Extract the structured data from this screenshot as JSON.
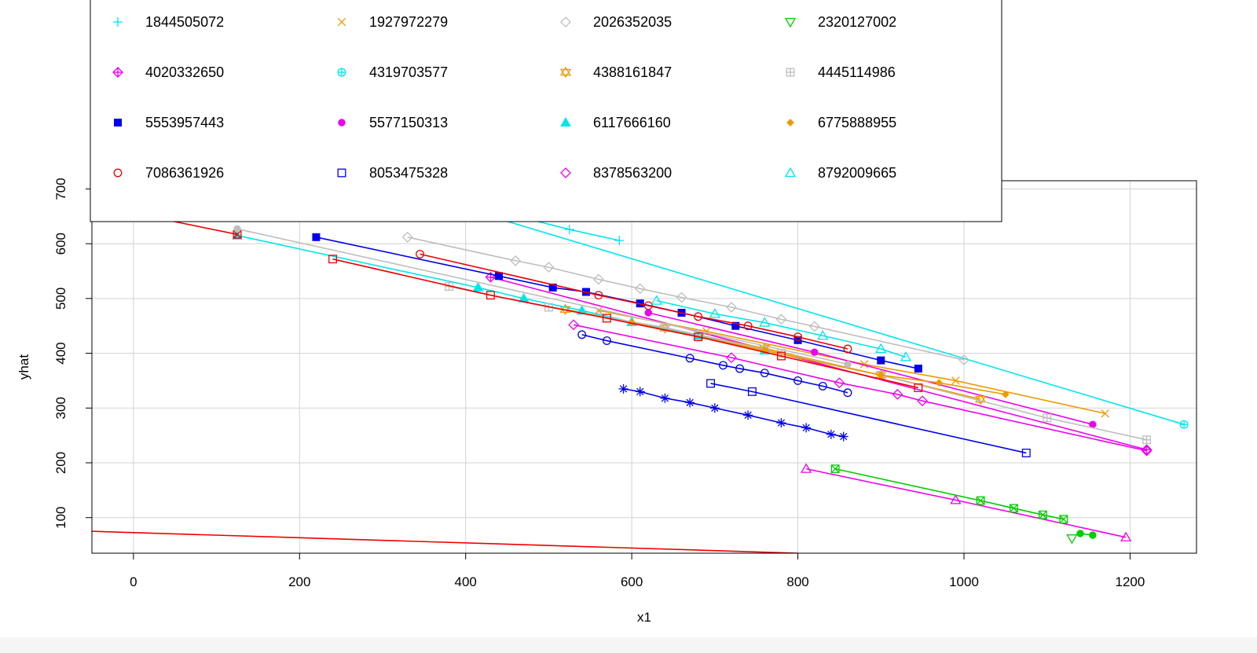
{
  "chart_data": {
    "type": "line",
    "title": "",
    "xlabel": "x1",
    "ylabel": "yhat",
    "xlim": [
      -50,
      1280
    ],
    "ylim": [
      35,
      715
    ],
    "x_ticks": [
      0,
      200,
      400,
      600,
      800,
      1000,
      1200
    ],
    "y_ticks": [
      100,
      200,
      300,
      400,
      500,
      600,
      700
    ],
    "grid": true,
    "legend_position": "top-left",
    "series": [
      {
        "name": "1844505072",
        "color": "#00e5ee",
        "marker": "plus",
        "points": [
          [
            380,
            682
          ],
          [
            525,
            626
          ],
          [
            585,
            606
          ]
        ]
      },
      {
        "name": "4020332650",
        "color": "#ee00ee",
        "marker": "diamond-plus",
        "points": [
          [
            430,
            539
          ],
          [
            1220,
            224
          ]
        ]
      },
      {
        "name": "5553957443",
        "color": "#0000ee",
        "marker": "square-filled",
        "points": [
          [
            220,
            612
          ],
          [
            440,
            541
          ],
          [
            505,
            520
          ],
          [
            545,
            512
          ],
          [
            610,
            491
          ],
          [
            660,
            474
          ],
          [
            725,
            450
          ],
          [
            800,
            424
          ],
          [
            900,
            387
          ],
          [
            945,
            372
          ]
        ]
      },
      {
        "name": "7086361926",
        "color": "#ee0000",
        "marker": "circle",
        "points": [
          [
            345,
            581
          ],
          [
            560,
            506
          ],
          [
            620,
            487
          ],
          [
            680,
            467
          ],
          [
            740,
            450
          ],
          [
            800,
            430
          ],
          [
            860,
            408
          ]
        ]
      },
      {
        "name": "1927972279",
        "color": "#ee9a00",
        "marker": "x",
        "points": [
          [
            560,
            478
          ],
          [
            690,
            440
          ],
          [
            880,
            380
          ],
          [
            990,
            350
          ],
          [
            1170,
            290
          ]
        ]
      },
      {
        "name": "4319703577",
        "color": "#00e5ee",
        "marker": "circle-plus",
        "points": [
          [
            320,
            700
          ],
          [
            1265,
            270
          ]
        ]
      },
      {
        "name": "5577150313",
        "color": "#ee00ee",
        "marker": "circle-filled",
        "points": [
          [
            620,
            474
          ],
          [
            820,
            402
          ],
          [
            1155,
            270
          ]
        ]
      },
      {
        "name": "8053475328",
        "color": "#0000ee",
        "marker": "square",
        "points": [
          [
            695,
            345
          ],
          [
            745,
            330
          ],
          [
            1075,
            218
          ]
        ]
      },
      {
        "name": "2026352035",
        "color": "#bebebe",
        "marker": "diamond",
        "points": [
          [
            330,
            612
          ],
          [
            460,
            569
          ],
          [
            500,
            557
          ],
          [
            560,
            535
          ],
          [
            610,
            518
          ],
          [
            660,
            502
          ],
          [
            720,
            484
          ],
          [
            780,
            462
          ],
          [
            820,
            449
          ],
          [
            1000,
            388
          ]
        ]
      },
      {
        "name": "4388161847",
        "color": "#ee9a00",
        "marker": "star-of-david",
        "points": [
          [
            520,
            480
          ],
          [
            640,
            446
          ],
          [
            760,
            409
          ],
          [
            900,
            360
          ],
          [
            1020,
            316
          ]
        ]
      },
      {
        "name": "6117666160",
        "color": "#00e5ee",
        "marker": "triangle-filled",
        "points": [
          [
            125,
            615
          ],
          [
            415,
            520
          ],
          [
            470,
            500
          ],
          [
            540,
            478
          ],
          [
            600,
            457
          ],
          [
            680,
            432
          ],
          [
            760,
            405
          ]
        ]
      },
      {
        "name": "8378563200",
        "color": "#ee00ee",
        "marker": "diamond",
        "points": [
          [
            530,
            452
          ],
          [
            720,
            392
          ],
          [
            850,
            346
          ],
          [
            920,
            325
          ],
          [
            950,
            313
          ],
          [
            1220,
            222
          ]
        ]
      },
      {
        "name": "2320127002",
        "color": "#00cd00",
        "marker": "triangle-down",
        "points": [
          [
            1130,
            62
          ]
        ]
      },
      {
        "name": "4445114986",
        "color": "#bebebe",
        "marker": "square-plus",
        "points": [
          [
            380,
            522
          ],
          [
            500,
            484
          ],
          [
            640,
            447
          ],
          [
            780,
            400
          ],
          [
            900,
            360
          ],
          [
            1100,
            282
          ],
          [
            1220,
            242
          ]
        ]
      },
      {
        "name": "6775888955",
        "color": "#ee9a00",
        "marker": "diamond-filled",
        "points": [
          [
            600,
            456
          ],
          [
            760,
            405
          ],
          [
            900,
            360
          ],
          [
            970,
            346
          ],
          [
            1050,
            325
          ]
        ]
      },
      {
        "name": "8792009665",
        "color": "#00e5ee",
        "marker": "triangle",
        "points": [
          [
            630,
            496
          ],
          [
            700,
            472
          ],
          [
            760,
            456
          ],
          [
            830,
            432
          ],
          [
            900,
            408
          ],
          [
            930,
            393
          ]
        ]
      },
      {
        "name": "",
        "color": "#ee0000",
        "marker": "square-x",
        "points": [
          [
            2,
            655
          ],
          [
            125,
            617
          ]
        ]
      },
      {
        "name": "",
        "color": "#ee0000",
        "marker": "square",
        "points": [
          [
            240,
            572
          ],
          [
            430,
            506
          ],
          [
            570,
            464
          ],
          [
            680,
            430
          ],
          [
            780,
            395
          ],
          [
            945,
            337
          ]
        ]
      },
      {
        "name": "",
        "color": "#bebebe",
        "marker": "circle-filled",
        "points": [
          [
            125,
            627
          ],
          [
            860,
            380
          ]
        ]
      },
      {
        "name": "",
        "color": "#0000ee",
        "marker": "circle",
        "points": [
          [
            540,
            434
          ],
          [
            570,
            423
          ],
          [
            670,
            391
          ],
          [
            710,
            378
          ],
          [
            730,
            372
          ],
          [
            760,
            364
          ],
          [
            800,
            350
          ],
          [
            830,
            340
          ],
          [
            860,
            328
          ]
        ]
      },
      {
        "name": "",
        "color": "#0000ee",
        "marker": "asterisk",
        "points": [
          [
            590,
            335
          ],
          [
            610,
            330
          ],
          [
            640,
            318
          ],
          [
            670,
            310
          ],
          [
            700,
            300
          ],
          [
            740,
            287
          ],
          [
            780,
            273
          ],
          [
            810,
            264
          ],
          [
            840,
            252
          ],
          [
            855,
            248
          ]
        ]
      },
      {
        "name": "",
        "color": "#ee00ee",
        "marker": "triangle",
        "points": [
          [
            810,
            189
          ],
          [
            990,
            132
          ],
          [
            1195,
            64
          ]
        ]
      },
      {
        "name": "",
        "color": "#00cd00",
        "marker": "square-x",
        "points": [
          [
            845,
            189
          ],
          [
            1020,
            131
          ],
          [
            1060,
            117
          ],
          [
            1095,
            105
          ],
          [
            1120,
            97
          ]
        ]
      },
      {
        "name": "",
        "color": "#00cd00",
        "marker": "circle-filled",
        "points": [
          [
            1140,
            71
          ],
          [
            1155,
            68
          ]
        ]
      },
      {
        "name": "",
        "color": "#ee0000",
        "marker": "none",
        "points": [
          [
            -50,
            75
          ],
          [
            800,
            35
          ]
        ]
      }
    ]
  }
}
